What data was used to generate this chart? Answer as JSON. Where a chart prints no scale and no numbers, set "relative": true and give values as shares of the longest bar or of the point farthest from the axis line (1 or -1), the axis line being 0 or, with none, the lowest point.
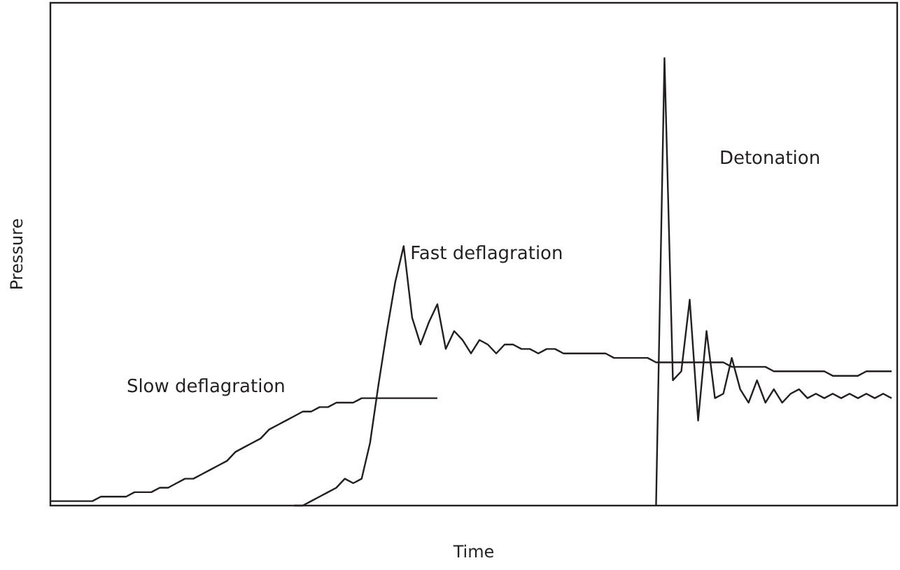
{
  "chart_data": {
    "type": "line",
    "relative": true,
    "xlabel": "Time",
    "ylabel": "Pressure",
    "grid": false,
    "legend": false,
    "marker": "none",
    "line_style": "solid",
    "categories": [
      null,
      null,
      null,
      null,
      null,
      null,
      null,
      null,
      null,
      null,
      null,
      null,
      null,
      null,
      null,
      null,
      null,
      null,
      null,
      null,
      null,
      null,
      null,
      null,
      null,
      null,
      null,
      null,
      null,
      null,
      null,
      null,
      null,
      null,
      null,
      null,
      null,
      null,
      null,
      null,
      null,
      null,
      null,
      null,
      null,
      null,
      null,
      null,
      null,
      null,
      null,
      null,
      null,
      null,
      null,
      null,
      null,
      null,
      null,
      null,
      null,
      null,
      null,
      null,
      null,
      null,
      null,
      null,
      null,
      null,
      null,
      null,
      null,
      null,
      null,
      null,
      null,
      null,
      null,
      null,
      null,
      null,
      null,
      null,
      null,
      null,
      null,
      null,
      null,
      null,
      null,
      null,
      null,
      null,
      null,
      null,
      null,
      null,
      null,
      null,
      null
    ],
    "series": [
      {
        "name": "Slow deflagration",
        "color": "#231f20",
        "values": [
          0.01,
          0.01,
          0.01,
          0.01,
          0.01,
          0.01,
          0.02,
          0.02,
          0.02,
          0.02,
          0.03,
          0.03,
          0.03,
          0.04,
          0.04,
          0.05,
          0.06,
          0.06,
          0.07,
          0.08,
          0.09,
          0.1,
          0.12,
          0.13,
          0.14,
          0.15,
          0.17,
          0.18,
          0.19,
          0.2,
          0.21,
          0.21,
          0.22,
          0.22,
          0.23,
          0.23,
          0.23,
          0.24,
          0.24,
          0.24,
          0.24,
          0.24,
          0.24,
          0.24,
          0.24,
          0.24,
          0.24,
          null,
          null,
          null,
          null,
          null,
          null,
          null,
          null,
          null,
          null,
          null,
          null,
          null,
          null,
          null,
          null,
          null,
          null,
          null,
          null,
          null,
          null,
          null,
          null,
          null,
          null,
          null,
          null,
          null,
          null,
          null,
          null,
          null,
          null,
          null,
          null,
          null,
          null,
          null,
          null,
          null,
          null,
          null,
          null,
          null,
          null,
          null,
          null,
          null,
          null,
          null,
          null,
          null,
          null
        ]
      },
      {
        "name": "Fast deflagration",
        "color": "#231f20",
        "values": [
          null,
          null,
          null,
          null,
          null,
          null,
          null,
          null,
          null,
          null,
          null,
          null,
          null,
          null,
          null,
          null,
          null,
          null,
          null,
          null,
          null,
          null,
          null,
          null,
          null,
          null,
          null,
          null,
          null,
          0,
          0,
          0.01,
          0.02,
          0.03,
          0.04,
          0.06,
          0.05,
          0.06,
          0.14,
          0.27,
          0.39,
          0.5,
          0.58,
          0.42,
          0.36,
          0.41,
          0.45,
          0.35,
          0.39,
          0.37,
          0.34,
          0.37,
          0.36,
          0.34,
          0.36,
          0.36,
          0.35,
          0.35,
          0.34,
          0.35,
          0.35,
          0.34,
          0.34,
          0.34,
          0.34,
          0.34,
          0.34,
          0.33,
          0.33,
          0.33,
          0.33,
          0.33,
          0.32,
          0.32,
          0.32,
          0.32,
          0.32,
          0.32,
          0.32,
          0.32,
          0.32,
          0.31,
          0.31,
          0.31,
          0.31,
          0.31,
          0.3,
          0.3,
          0.3,
          0.3,
          0.3,
          0.3,
          0.3,
          0.29,
          0.29,
          0.29,
          0.29,
          0.3,
          0.3,
          0.3,
          0.3
        ]
      },
      {
        "name": "Detonation",
        "color": "#231f20",
        "values": [
          null,
          null,
          null,
          null,
          null,
          null,
          null,
          null,
          null,
          null,
          null,
          null,
          null,
          null,
          null,
          null,
          null,
          null,
          null,
          null,
          null,
          null,
          null,
          null,
          null,
          null,
          null,
          null,
          null,
          null,
          null,
          null,
          null,
          null,
          null,
          null,
          null,
          null,
          null,
          null,
          null,
          null,
          null,
          null,
          null,
          null,
          null,
          null,
          null,
          null,
          null,
          null,
          null,
          null,
          null,
          null,
          null,
          null,
          null,
          null,
          null,
          null,
          null,
          null,
          null,
          null,
          null,
          null,
          null,
          null,
          null,
          null,
          0,
          1,
          0.28,
          0.3,
          0.46,
          0.19,
          0.39,
          0.24,
          0.25,
          0.33,
          0.26,
          0.23,
          0.28,
          0.23,
          0.26,
          0.23,
          0.25,
          0.26,
          0.24,
          0.25,
          0.24,
          0.25,
          0.24,
          0.25,
          0.24,
          0.25,
          0.24,
          0.25,
          0.24
        ]
      }
    ]
  }
}
